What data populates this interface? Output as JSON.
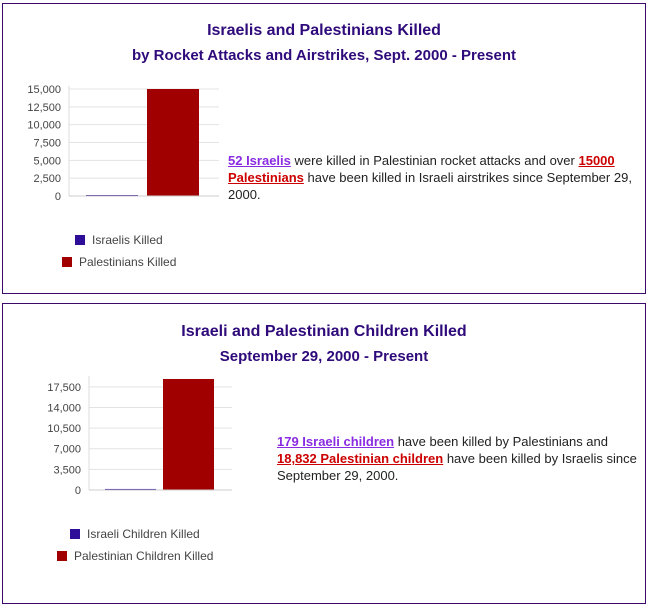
{
  "colors": {
    "israel": "#2e0d99",
    "palestine": "#a10000",
    "title": "#2e0a7a"
  },
  "panel1": {
    "title": "Israelis and Palestinians Killed",
    "subtitle": "by Rocket Attacks and Airstrikes, Sept. 2000 - Present",
    "legend": [
      "Israelis Killed",
      "Palestinians Killed"
    ],
    "text": {
      "link1": "52 Israelis",
      "mid1": " were killed in Palestinian rocket attacks and over ",
      "link2": "15000 Palestinians",
      "mid2": " have been killed in Israeli airstrikes since September 29, 2000."
    }
  },
  "panel2": {
    "title": "Israeli and Palestinian Children Killed",
    "subtitle": "September 29, 2000 - Present",
    "legend": [
      "Israeli Children Killed",
      "Palestinian Children Killed"
    ],
    "text": {
      "link1": "179 Israeli children",
      "mid1": " have been killed by Palestinians and ",
      "link2": "18,832 Palestinian children",
      "mid2": " have been killed by Israelis since September 29, 2000."
    }
  },
  "chart_data": [
    {
      "type": "bar",
      "title": "Israelis and Palestinians Killed",
      "subtitle": "by Rocket Attacks and Airstrikes, Sept. 2000 - Present",
      "series": [
        {
          "name": "Israelis Killed",
          "values": [
            52
          ]
        },
        {
          "name": "Palestinians Killed",
          "values": [
            15000
          ]
        }
      ],
      "ylim": [
        0,
        15000
      ],
      "yticks": [
        "0",
        "2,500",
        "5,000",
        "7,500",
        "10,000",
        "12,500",
        "15,000"
      ],
      "ytick_values": [
        0,
        2500,
        5000,
        7500,
        10000,
        12500,
        15000
      ],
      "grid": true,
      "legend": "bottom"
    },
    {
      "type": "bar",
      "title": "Israeli and Palestinian Children Killed",
      "subtitle": "September 29, 2000 - Present",
      "series": [
        {
          "name": "Israeli Children Killed",
          "values": [
            179
          ]
        },
        {
          "name": "Palestinian Children Killed",
          "values": [
            18832
          ]
        }
      ],
      "ylim": [
        0,
        18832
      ],
      "yticks": [
        "0",
        "3,500",
        "7,000",
        "10,500",
        "14,000",
        "17,500"
      ],
      "ytick_values": [
        0,
        3500,
        7000,
        10500,
        14000,
        17500
      ],
      "grid": true,
      "legend": "bottom"
    }
  ]
}
